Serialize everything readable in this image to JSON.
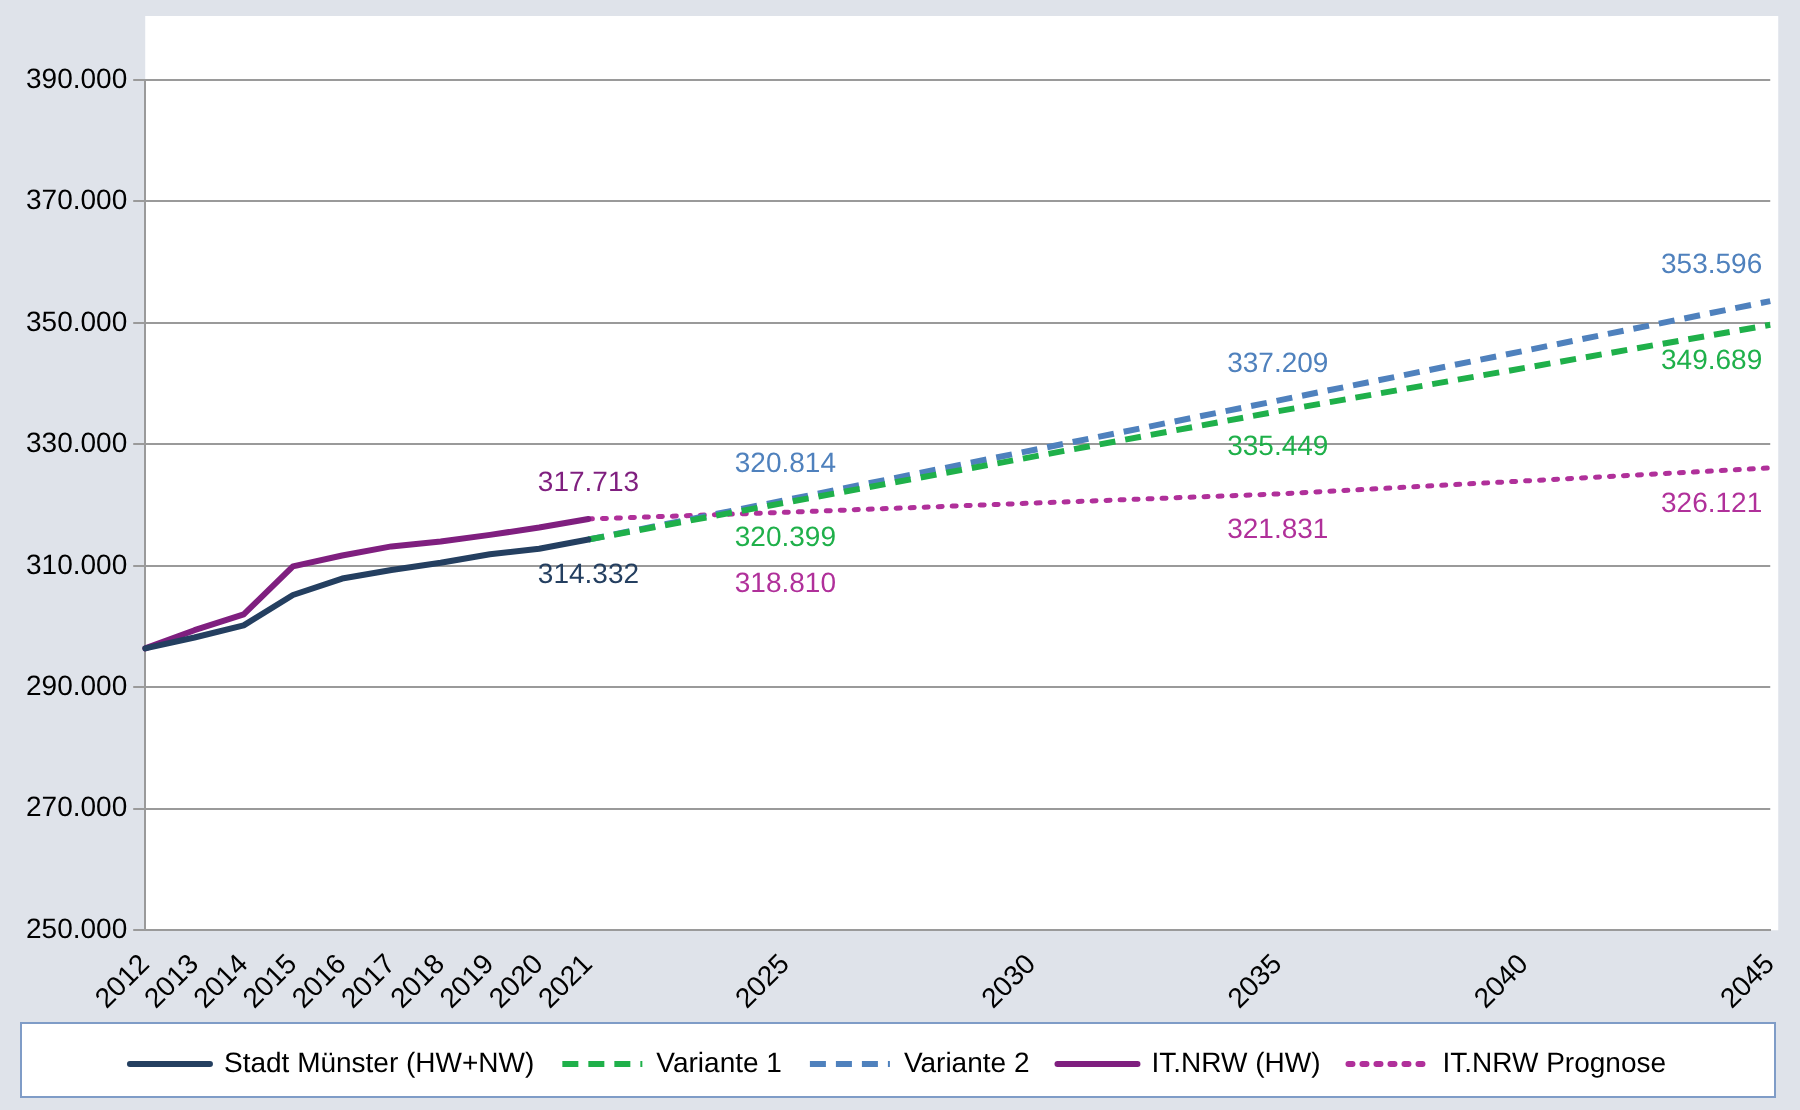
{
  "chart_data": {
    "type": "line",
    "categories": [
      "2012",
      "2013",
      "2014",
      "2015",
      "2016",
      "2017",
      "2018",
      "2019",
      "2020",
      "2021",
      null,
      null,
      null,
      "2025",
      null,
      null,
      null,
      null,
      "2030",
      null,
      null,
      null,
      null,
      "2035",
      null,
      null,
      null,
      null,
      "2040",
      null,
      null,
      null,
      null,
      "2045"
    ],
    "series": [
      {
        "name": "Stadt Münster (HW+NW)",
        "color": "#243f60",
        "line_style": "solid",
        "values": [
          296400,
          298200,
          300200,
          305200,
          307900,
          309300,
          310500,
          311900,
          312800,
          314332,
          null,
          null,
          null,
          null,
          null,
          null,
          null,
          null,
          null,
          null,
          null,
          null,
          null,
          null,
          null,
          null,
          null,
          null,
          null,
          null,
          null,
          null,
          null,
          null
        ],
        "value_labels": [
          null,
          null,
          null,
          null,
          null,
          null,
          null,
          null,
          null,
          "314.332",
          null,
          null,
          null,
          null,
          null,
          null,
          null,
          null,
          null,
          null,
          null,
          null,
          null,
          null,
          null,
          null,
          null,
          null,
          null,
          null,
          null,
          null,
          null,
          null
        ]
      },
      {
        "name": "Variante 1",
        "color": "#1fb04a",
        "line_style": "dashed",
        "values": [
          null,
          null,
          null,
          null,
          null,
          null,
          null,
          null,
          null,
          314332,
          null,
          null,
          null,
          320399,
          null,
          null,
          null,
          null,
          null,
          null,
          null,
          null,
          null,
          335449,
          null,
          null,
          null,
          null,
          null,
          null,
          null,
          null,
          null,
          349689
        ],
        "value_labels": [
          null,
          null,
          null,
          null,
          null,
          null,
          null,
          null,
          null,
          null,
          null,
          null,
          null,
          "320.399",
          null,
          null,
          null,
          null,
          null,
          null,
          null,
          null,
          null,
          "335.449",
          null,
          null,
          null,
          null,
          null,
          null,
          null,
          null,
          null,
          "349.689"
        ]
      },
      {
        "name": "Variante 2",
        "color": "#4f81bd",
        "line_style": "dashed",
        "values": [
          null,
          null,
          null,
          null,
          null,
          null,
          null,
          null,
          null,
          314332,
          null,
          null,
          null,
          320814,
          null,
          null,
          null,
          null,
          null,
          null,
          null,
          null,
          null,
          337209,
          null,
          null,
          null,
          null,
          null,
          null,
          null,
          null,
          null,
          353596
        ],
        "value_labels": [
          null,
          null,
          null,
          null,
          null,
          null,
          null,
          null,
          null,
          null,
          null,
          null,
          null,
          "320.814",
          null,
          null,
          null,
          null,
          null,
          null,
          null,
          null,
          null,
          "337.209",
          null,
          null,
          null,
          null,
          null,
          null,
          null,
          null,
          null,
          "353.596"
        ]
      },
      {
        "name": "IT.NRW (HW)",
        "color": "#7f1f7f",
        "line_style": "solid",
        "values": [
          296400,
          299400,
          302000,
          309900,
          311700,
          313200,
          314000,
          315100,
          316300,
          317713,
          null,
          null,
          null,
          null,
          null,
          null,
          null,
          null,
          null,
          null,
          null,
          null,
          null,
          null,
          null,
          null,
          null,
          null,
          null,
          null,
          null,
          null,
          null,
          null
        ],
        "value_labels": [
          null,
          null,
          null,
          null,
          null,
          null,
          null,
          null,
          null,
          "317.713",
          null,
          null,
          null,
          null,
          null,
          null,
          null,
          null,
          null,
          null,
          null,
          null,
          null,
          null,
          null,
          null,
          null,
          null,
          null,
          null,
          null,
          null,
          null,
          null
        ]
      },
      {
        "name": "IT.NRW Prognose",
        "color": "#b0309a",
        "line_style": "dotted",
        "values": [
          null,
          null,
          null,
          null,
          null,
          null,
          null,
          null,
          null,
          317713,
          null,
          null,
          null,
          318810,
          null,
          null,
          null,
          null,
          null,
          null,
          null,
          null,
          null,
          321831,
          null,
          null,
          null,
          null,
          null,
          null,
          null,
          null,
          null,
          326121
        ],
        "value_labels": [
          null,
          null,
          null,
          null,
          null,
          null,
          null,
          null,
          null,
          null,
          null,
          null,
          null,
          "318.810",
          null,
          null,
          null,
          null,
          null,
          null,
          null,
          null,
          null,
          "321.831",
          null,
          null,
          null,
          null,
          null,
          null,
          null,
          null,
          null,
          "326.121"
        ]
      }
    ],
    "ylim": [
      250000,
      390000
    ],
    "yticks": [
      {
        "value": 250000,
        "label": "250.000"
      },
      {
        "value": 270000,
        "label": "270.000"
      },
      {
        "value": 290000,
        "label": "290.000"
      },
      {
        "value": 310000,
        "label": "310.000"
      },
      {
        "value": 330000,
        "label": "330.000"
      },
      {
        "value": 350000,
        "label": "350.000"
      },
      {
        "value": 370000,
        "label": "370.000"
      },
      {
        "value": 390000,
        "label": "390.000"
      }
    ],
    "grid": "y",
    "legend": "bottom",
    "marker": "none"
  }
}
